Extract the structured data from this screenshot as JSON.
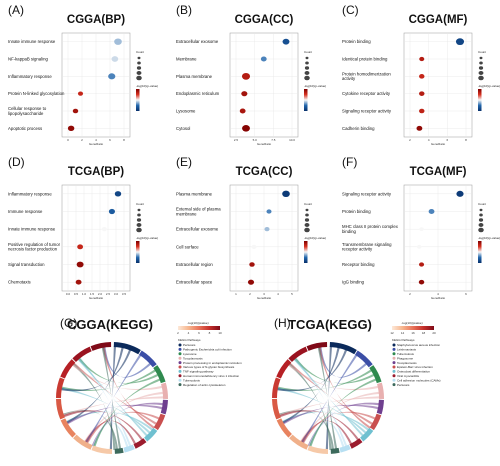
{
  "colors": {
    "deep_red": "#7f0000",
    "red": "#d7301f",
    "white": "#f7f7f7",
    "blue": "#2166ac",
    "navy": "#08306b",
    "grid": "#e6e6e6"
  },
  "chart_data": [
    {
      "type": "scatter",
      "panel": "(A)",
      "title": "CGGA(BP)",
      "categories": [
        "Innate immune response",
        "NF-kappaB signaling",
        "Inflammatory response",
        "Protein N-linked glycosylation",
        "Cellular response to lipopolysaccharide",
        "Apoptotic process"
      ],
      "x": [
        8,
        7.5,
        7,
        2,
        1.2,
        0.5
      ],
      "size": [
        600,
        400,
        500,
        150,
        200,
        350
      ],
      "color": [
        0.6,
        0.55,
        0.7,
        0.2,
        0.1,
        0.05
      ],
      "xticks": [
        "0",
        "2",
        "4",
        "6",
        "8"
      ],
      "xlabel": "GeneRatio",
      "size_legend_title": "Count",
      "color_legend_title": "-log(10)(p-value)"
    },
    {
      "type": "scatter",
      "panel": "(B)",
      "title": "CGGA(CC)",
      "categories": [
        "Extracellular exosome",
        "Membrane",
        "Plasma membrane",
        "Endoplasmic reticulum",
        "Lysosome",
        "Cytosol"
      ],
      "x": [
        9,
        5,
        1.8,
        1.5,
        1.2,
        1.8
      ],
      "size": [
        450,
        250,
        700,
        300,
        250,
        650
      ],
      "color": [
        0.85,
        0.7,
        0.15,
        0.1,
        0.12,
        0.02
      ],
      "xticks": [
        "2.5",
        "5.0",
        "7.5",
        "10.0"
      ],
      "xlabel": "GeneRatio",
      "size_legend_title": "Count",
      "color_legend_title": "-log(10)(p-value)"
    },
    {
      "type": "scatter",
      "panel": "(C)",
      "title": "CGGA(MF)",
      "categories": [
        "Protein binding",
        "Identical protein binding",
        "Protein homodimerization activity",
        "Cytokine receptor activity",
        "Signaling receptor activity",
        "Cadherin binding"
      ],
      "x": [
        8.5,
        2,
        2,
        2,
        2,
        1.6
      ],
      "size": [
        700,
        150,
        200,
        200,
        200,
        250
      ],
      "color": [
        0.9,
        0.15,
        0.2,
        0.15,
        0.18,
        0.05
      ],
      "xticks": [
        "2",
        "4",
        "6",
        "8"
      ],
      "xlabel": "GeneRatio",
      "size_legend_title": "Count",
      "color_legend_title": "-log(10)(p-value)"
    },
    {
      "type": "scatter",
      "panel": "(D)",
      "title": "TCGA(BP)",
      "categories": [
        "Inflammatory response",
        "Immune response",
        "Innate immune response",
        "Positive regulation of tumor necrosis factor production",
        "Signal transduction",
        "Chemotaxis"
      ],
      "x": [
        3.3,
        2.9,
        2.4,
        0.8,
        0.8,
        0.7
      ],
      "size": [
        350,
        300,
        150,
        250,
        450,
        250
      ],
      "color": [
        0.9,
        0.8,
        0.5,
        0.2,
        0.05,
        0.1
      ],
      "xticks": [
        "0.0",
        "0.5",
        "1.0",
        "1.5",
        "2.0",
        "2.5",
        "3.0",
        "3.5"
      ],
      "xlabel": "GeneRatio",
      "size_legend_title": "Count",
      "color_legend_title": "-log(10)(p-value)"
    },
    {
      "type": "scatter",
      "panel": "(E)",
      "title": "TCGA(CC)",
      "categories": [
        "Plasma membrane",
        "External side of plasma membrane",
        "Extracellular exosome",
        "Cell surface",
        "Extracellular region",
        "Extracellular space"
      ],
      "x": [
        5,
        3.3,
        3.1,
        1.8,
        1.6,
        1.5
      ],
      "size": [
        600,
        150,
        150,
        150,
        200,
        300
      ],
      "color": [
        0.95,
        0.7,
        0.6,
        0.5,
        0.1,
        0.05
      ],
      "xticks": [
        "1",
        "2",
        "3",
        "4",
        "5"
      ],
      "xlabel": "GeneRatio",
      "size_legend_title": "Count",
      "color_legend_title": "-log(10)(p-value)"
    },
    {
      "type": "scatter",
      "panel": "(F)",
      "title": "TCGA(MF)",
      "categories": [
        "Signaling receptor activity",
        "Protein binding",
        "MHC class II protein complex binding",
        "Transmembrane signaling receptor activity",
        "Receptor binding",
        "IgG binding"
      ],
      "x": [
        6.5,
        2.8,
        1.5,
        1.2,
        1.5,
        1.5
      ],
      "size": [
        500,
        250,
        100,
        100,
        150,
        200
      ],
      "color": [
        0.95,
        0.7,
        0.5,
        0.5,
        0.15,
        0.05
      ],
      "xticks": [
        "2",
        "4",
        "6"
      ],
      "xlabel": "GeneRatio",
      "size_legend_title": "Count",
      "color_legend_title": "-log(10)(p-value)"
    },
    {
      "type": "chord",
      "panel": "(G)",
      "title": "CGGA(KEGG)",
      "legend_title": "KEGG Pathways",
      "color_legend_title": "-log(10)(pvalue)",
      "color_ticks": [
        "2",
        "4",
        "6",
        "8",
        "10"
      ],
      "pathways": [
        "Pertussis",
        "Pathogenic Escherichia coli infection",
        "Lysosome",
        "Toxoplasmosis",
        "Protein processing in endoplasmic reticulum",
        "Various types of N-glycan biosynthesis",
        "TNF signaling pathway",
        "Human immunodeficiency virus 1 infection",
        "Tuberculosis",
        "Regulation of actin cytoskeleton"
      ],
      "pathway_colors": [
        "#0b2a5b",
        "#3b4ea6",
        "#2f8a4f",
        "#e8b0b0",
        "#6f3f8f",
        "#c94f4f",
        "#6fc0d0",
        "#9b1c2e",
        "#b7dff2",
        "#3d6a5c"
      ]
    },
    {
      "type": "chord",
      "panel": "(H)",
      "title": "TCGA(KEGG)",
      "legend_title": "KEGG Pathways",
      "color_legend_title": "-log(10)(pvalue)",
      "color_ticks": [
        "12",
        "14",
        "16",
        "18",
        "20"
      ],
      "pathways": [
        "Staphylococcus aureus infection",
        "Leishmaniasis",
        "Tuberculosis",
        "Phagosome",
        "Toxoplasmosis",
        "Epstein-Barr virus infection",
        "Osteoclast differentiation",
        "Viral myocarditis",
        "Cell adhesion molecules (CAMs)",
        "Pertussis"
      ],
      "pathway_colors": [
        "#0b2a5b",
        "#3b4ea6",
        "#2f8a4f",
        "#e8b0b0",
        "#6f3f8f",
        "#c94f4f",
        "#6fc0d0",
        "#9b1c2e",
        "#b7dff2",
        "#3d6a5c"
      ]
    }
  ]
}
